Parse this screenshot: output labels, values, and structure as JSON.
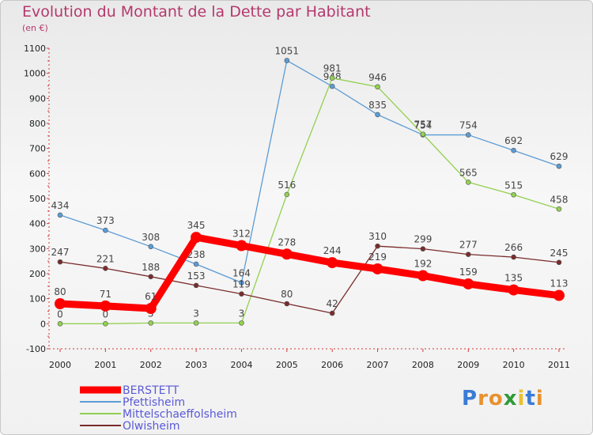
{
  "title": "Evolution du Montant de la Dette par Habitant",
  "unit": "(en €)",
  "logo": {
    "letters": [
      "P",
      "r",
      "o",
      "x",
      "i",
      "t",
      "i"
    ],
    "colors": [
      "#3a7bd5",
      "#e8912d",
      "#e8912d",
      "#2f9a3a",
      "#e8c12d",
      "#3a7bd5",
      "#e8912d"
    ]
  },
  "chart_data": {
    "type": "line",
    "title": "Evolution du Montant de la Dette par Habitant",
    "ylabel": "(en €)",
    "xlabel": "",
    "x": [
      "2000",
      "2001",
      "2002",
      "2003",
      "2004",
      "2005",
      "2006",
      "2007",
      "2008",
      "2009",
      "2010",
      "2011"
    ],
    "ylim": [
      -100,
      1100
    ],
    "yticks": [
      "-100",
      "0",
      "100",
      "200",
      "300",
      "400",
      "500",
      "600",
      "700",
      "800",
      "900",
      "1000",
      "1100"
    ],
    "grid": false,
    "legend_position": "bottom-left",
    "series": [
      {
        "name": "BERSTETT",
        "color": "#ff0000",
        "emphasis": true,
        "values": [
          80,
          71,
          61,
          345,
          312,
          278,
          244,
          219,
          192,
          159,
          135,
          113
        ]
      },
      {
        "name": "Pfettisheim",
        "color": "#5b9bd5",
        "values": [
          434,
          373,
          308,
          238,
          164,
          1051,
          948,
          835,
          754,
          754,
          692,
          629
        ]
      },
      {
        "name": "Mittelschaeffolsheim",
        "color": "#92d050",
        "values": [
          0,
          0,
          3,
          3,
          3,
          516,
          981,
          946,
          757,
          565,
          515,
          458
        ]
      },
      {
        "name": "Olwisheim",
        "color": "#7a2c2c",
        "values": [
          247,
          221,
          188,
          153,
          119,
          80,
          42,
          310,
          299,
          277,
          266,
          245
        ]
      }
    ]
  }
}
